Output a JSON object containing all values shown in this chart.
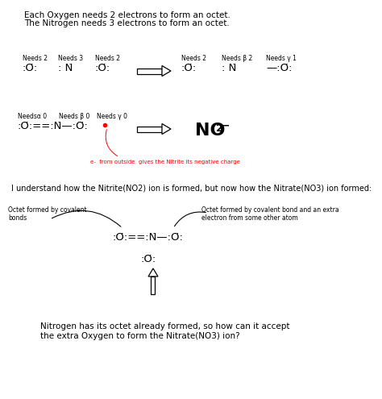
{
  "bg_color": "#ffffff",
  "title_line1": "Each Oxygen needs 2 electrons to form an octet.",
  "title_line2": "The Nitrogen needs 3 electrons to form an octet.",
  "bottom_text": "I understand how the Nitrite(NO2) ion is formed, but now how the Nitrate(NO3) ion formed:",
  "octet_left": "Octet formed by covalent\nbonds",
  "octet_right": "Octet formed by covalent bond and an extra\nelectron from some other atom",
  "red_note": "e-  from outside  gives the Nitrite its negative charge",
  "final_text1": "Nitrogen has its octet already formed, so how can it accept",
  "final_text2": "the extra Oxygen to form the Nitrate(NO3) ion?"
}
